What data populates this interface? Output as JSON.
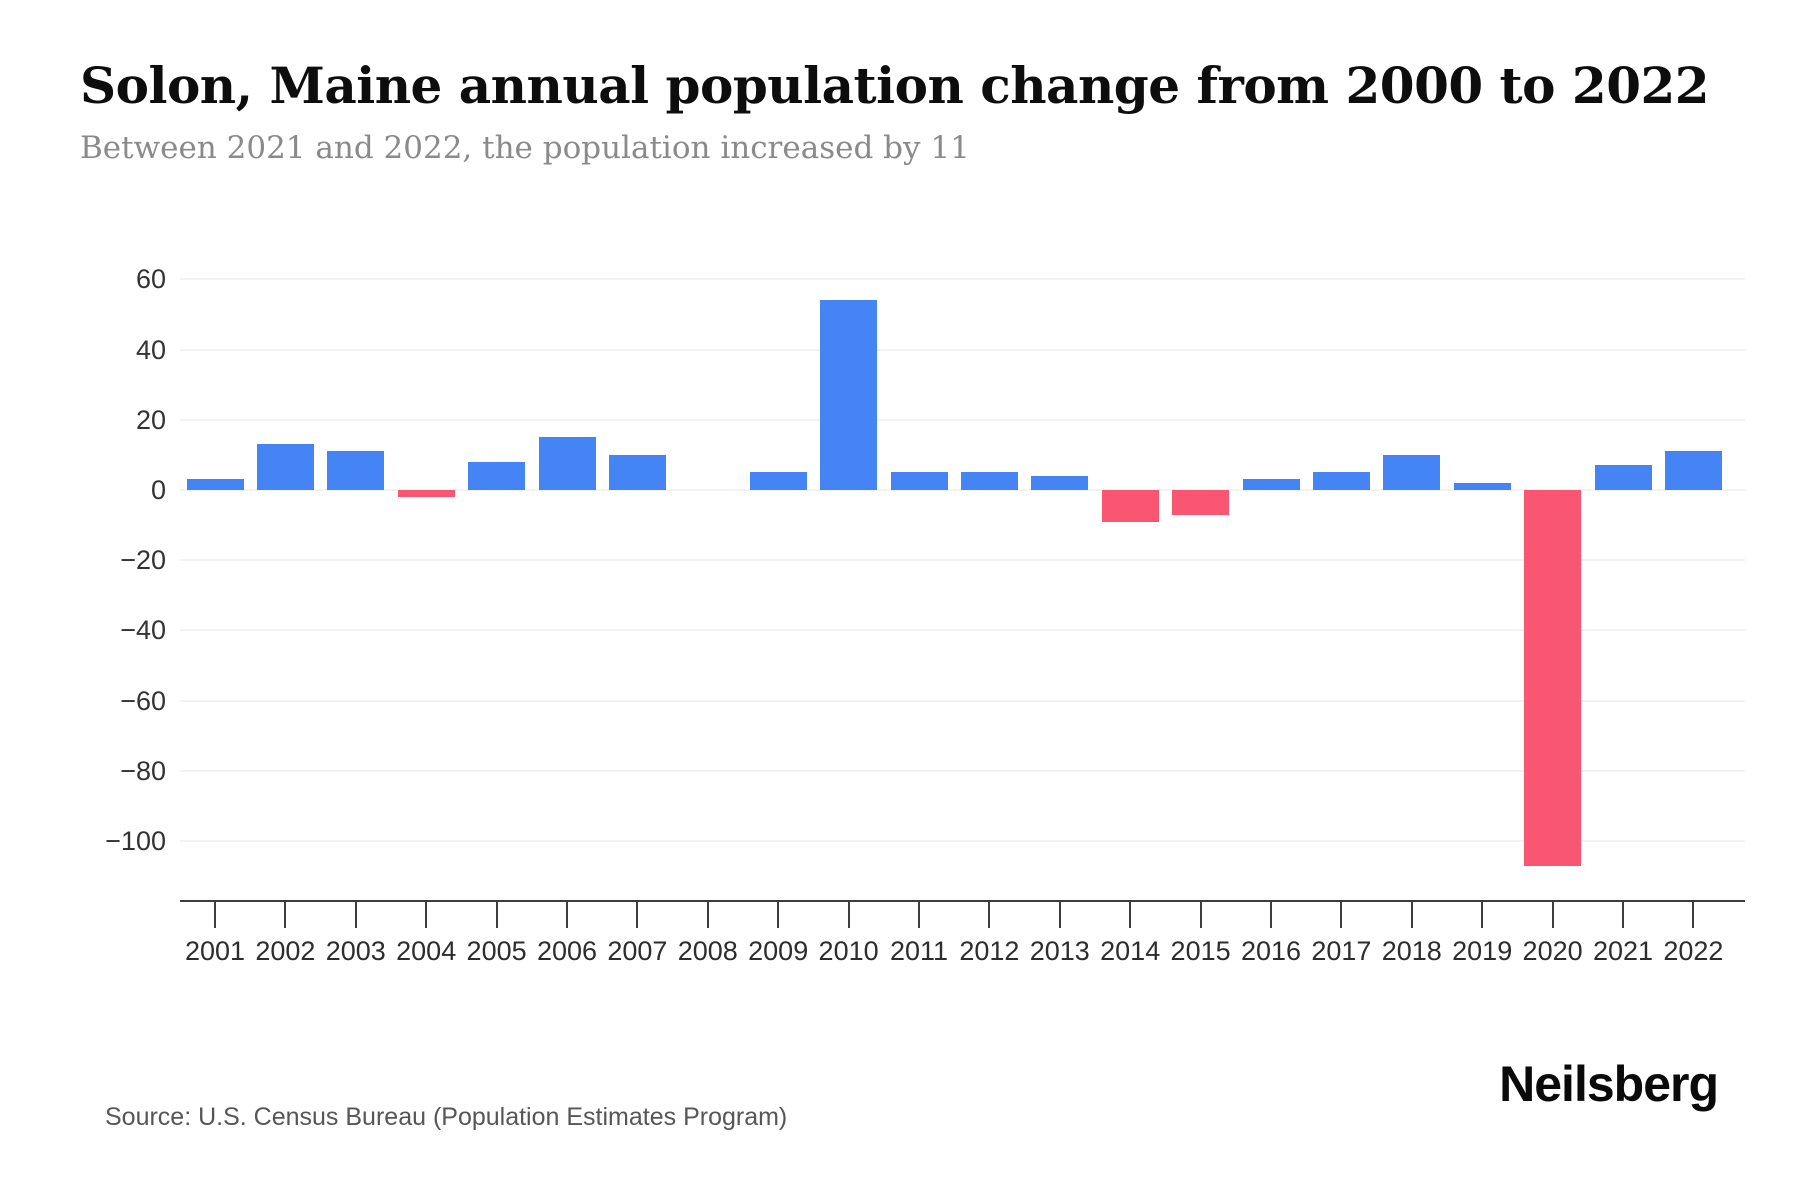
{
  "chart_data": {
    "type": "bar",
    "title": "Solon, Maine annual population change from 2000 to 2022",
    "subtitle": "Between 2021 and 2022, the population increased by 11",
    "categories": [
      "2001",
      "2002",
      "2003",
      "2004",
      "2005",
      "2006",
      "2007",
      "2008",
      "2009",
      "2010",
      "2011",
      "2012",
      "2013",
      "2014",
      "2015",
      "2016",
      "2017",
      "2018",
      "2019",
      "2020",
      "2021",
      "2022"
    ],
    "values": [
      3,
      13,
      11,
      -2,
      8,
      15,
      10,
      0,
      5,
      54,
      5,
      5,
      4,
      -9,
      -7,
      3,
      5,
      10,
      2,
      -107,
      7,
      11
    ],
    "xlabel": "",
    "ylabel": "",
    "ylim": [
      -117,
      74
    ],
    "y_ticks": [
      60,
      40,
      20,
      0,
      -20,
      -40,
      -60,
      -80,
      -100
    ],
    "y_tick_labels": [
      "60",
      "40",
      "20",
      "0",
      "−20",
      "−40",
      "−60",
      "−80",
      "−100"
    ],
    "grid": "horizontal",
    "legend": "none",
    "colors": {
      "positive_bar": "#4484f4",
      "negative_bar": "#f95671",
      "gridline": "#f2f2f2",
      "axis_line": "#3d3d3d",
      "tick_label": "#2d2d2d"
    }
  },
  "footer": {
    "source": "Source: U.S. Census Bureau (Population Estimates Program)",
    "brand": "Neilsberg"
  }
}
